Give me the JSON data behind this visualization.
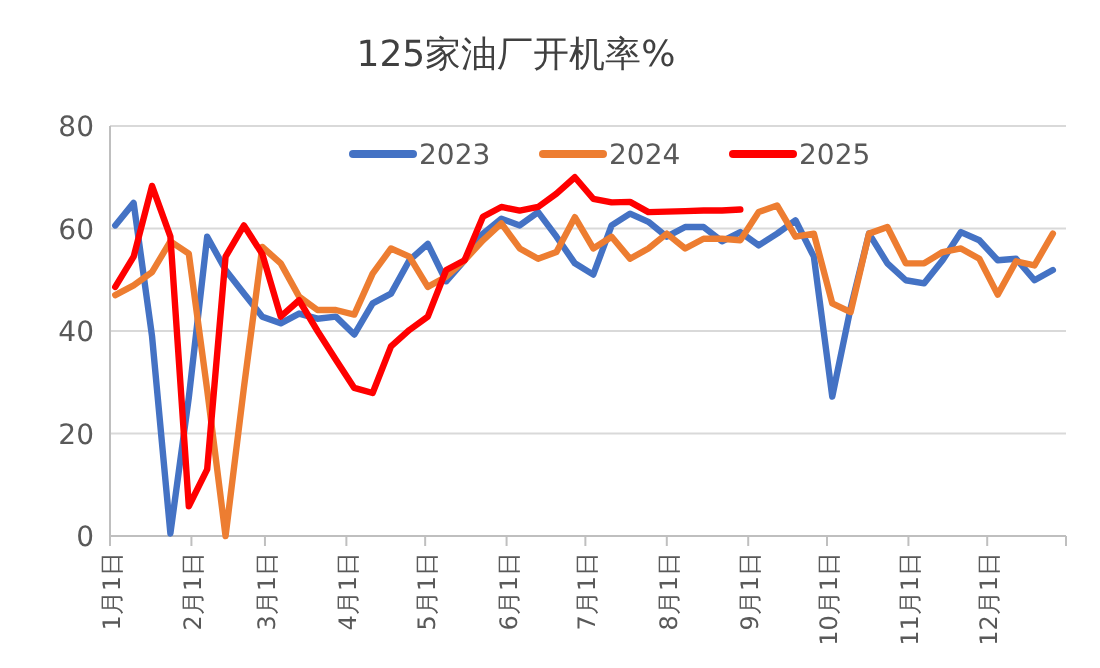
{
  "chart_data": {
    "type": "line",
    "title": "125家油厂开机率%",
    "x": [
      "--01-03",
      "--01-10",
      "--01-17",
      "--01-24",
      "--01-31",
      "--02-07",
      "--02-14",
      "--02-21",
      "--02-28",
      "--03-07",
      "--03-14",
      "--03-21",
      "--03-28",
      "--04-04",
      "--04-11",
      "--04-18",
      "--04-25",
      "--05-02",
      "--05-09",
      "--05-16",
      "--05-23",
      "--05-30",
      "--06-06",
      "--06-13",
      "--06-20",
      "--06-27",
      "--07-04",
      "--07-11",
      "--07-18",
      "--07-25",
      "--08-01",
      "--08-08",
      "--08-15",
      "--08-22",
      "--08-29",
      "--09-05",
      "--09-12",
      "--09-19",
      "--09-26",
      "--10-03",
      "--10-10",
      "--10-17",
      "--10-24",
      "--10-31",
      "--11-07",
      "--11-14",
      "--11-21",
      "--11-28",
      "--12-05",
      "--12-12",
      "--12-19",
      "--12-26"
    ],
    "series": [
      {
        "name": "2023",
        "color": "#4472c4",
        "values": [
          60.6,
          65,
          39,
          0.5,
          27,
          58.4,
          51.9,
          47.3,
          42.8,
          41.5,
          43.4,
          42.4,
          42.8,
          39.3,
          45.4,
          47.3,
          53.8,
          57,
          49.7,
          53.8,
          59,
          61.9,
          60.6,
          63.2,
          58.4,
          53.2,
          51,
          60.6,
          62.9,
          61.3,
          58.4,
          60.3,
          60.3,
          57.5,
          59.3,
          56.7,
          59,
          61.6,
          54.5,
          27.2,
          44.5,
          59,
          53.2,
          49.9,
          49.3,
          53.8,
          59.3,
          57.7,
          53.8,
          54.1,
          49.9,
          51.9
        ]
      },
      {
        "name": "2024",
        "color": "#ed7d31",
        "values": [
          47,
          48.9,
          51.5,
          57.5,
          55.1,
          28.5,
          0,
          29,
          56.4,
          53.2,
          46.7,
          44.1,
          44.1,
          43.2,
          51.2,
          56.1,
          54.5,
          48.6,
          50.6,
          53.8,
          57.7,
          61,
          56.1,
          54.1,
          55.4,
          62.2,
          56.1,
          58.4,
          54.1,
          56.1,
          59,
          56.1,
          58,
          58,
          57.7,
          63.2,
          64.5,
          58.4,
          59,
          45.4,
          43.7,
          59,
          60.3,
          53.2,
          53.2,
          55.4,
          56.1,
          54.1,
          47.1,
          53.6,
          52.8,
          59
        ]
      },
      {
        "name": "2025",
        "color": "#ff0000",
        "values": [
          48.6,
          54.5,
          68.3,
          58.4,
          5.8,
          13,
          54.5,
          60.6,
          55,
          42.8,
          46,
          40,
          34.4,
          28.9,
          27.9,
          37,
          40.2,
          42.8,
          51.9,
          53.8,
          62.3,
          64.2,
          63.5,
          64.2,
          66.8,
          70,
          65.8,
          65.1,
          65.2,
          63.2,
          63.3,
          63.4,
          63.5,
          63.5,
          63.7,
          null,
          null,
          null,
          null,
          null,
          null,
          null,
          null,
          null,
          null,
          null,
          null,
          null,
          null,
          null,
          null,
          null
        ]
      }
    ],
    "xlim": [
      "--01-01",
      "--12-31"
    ],
    "xticks": [
      {
        "value": "--01-01",
        "label": "1月1日"
      },
      {
        "value": "--02-01",
        "label": "2月1日"
      },
      {
        "value": "--03-01",
        "label": "3月1日"
      },
      {
        "value": "--04-01",
        "label": "4月1日"
      },
      {
        "value": "--05-01",
        "label": "5月1日"
      },
      {
        "value": "--06-01",
        "label": "6月1日"
      },
      {
        "value": "--07-01",
        "label": "7月1日"
      },
      {
        "value": "--08-01",
        "label": "8月1日"
      },
      {
        "value": "--09-01",
        "label": "9月1日"
      },
      {
        "value": "--10-01",
        "label": "10月1日"
      },
      {
        "value": "--11-01",
        "label": "11月1日"
      },
      {
        "value": "--12-01",
        "label": "12月1日"
      },
      {
        "value": "--12-31",
        "label": null
      }
    ],
    "ylim": [
      0,
      80
    ],
    "yticks": [
      0,
      20,
      40,
      60,
      80
    ],
    "grid": "y",
    "legend": "top"
  }
}
